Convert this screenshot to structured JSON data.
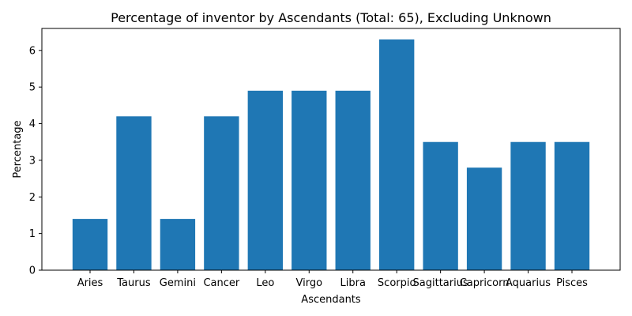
{
  "chart_data": {
    "type": "bar",
    "title": "Percentage of inventor by Ascendants (Total: 65), Excluding Unknown",
    "xlabel": "Ascendants",
    "ylabel": "Percentage",
    "categories": [
      "Aries",
      "Taurus",
      "Gemini",
      "Cancer",
      "Leo",
      "Virgo",
      "Libra",
      "Scorpio",
      "Sagittarius",
      "Capricorn",
      "Aquarius",
      "Pisces"
    ],
    "values": [
      1.4,
      4.2,
      1.4,
      4.2,
      4.9,
      4.9,
      4.9,
      6.3,
      3.5,
      2.8,
      3.5,
      3.5
    ],
    "ylim": [
      0,
      6.6
    ],
    "yticks": [
      0,
      1,
      2,
      3,
      4,
      5,
      6
    ],
    "bar_color": "#1f77b4",
    "grid": false,
    "legend": "none"
  }
}
